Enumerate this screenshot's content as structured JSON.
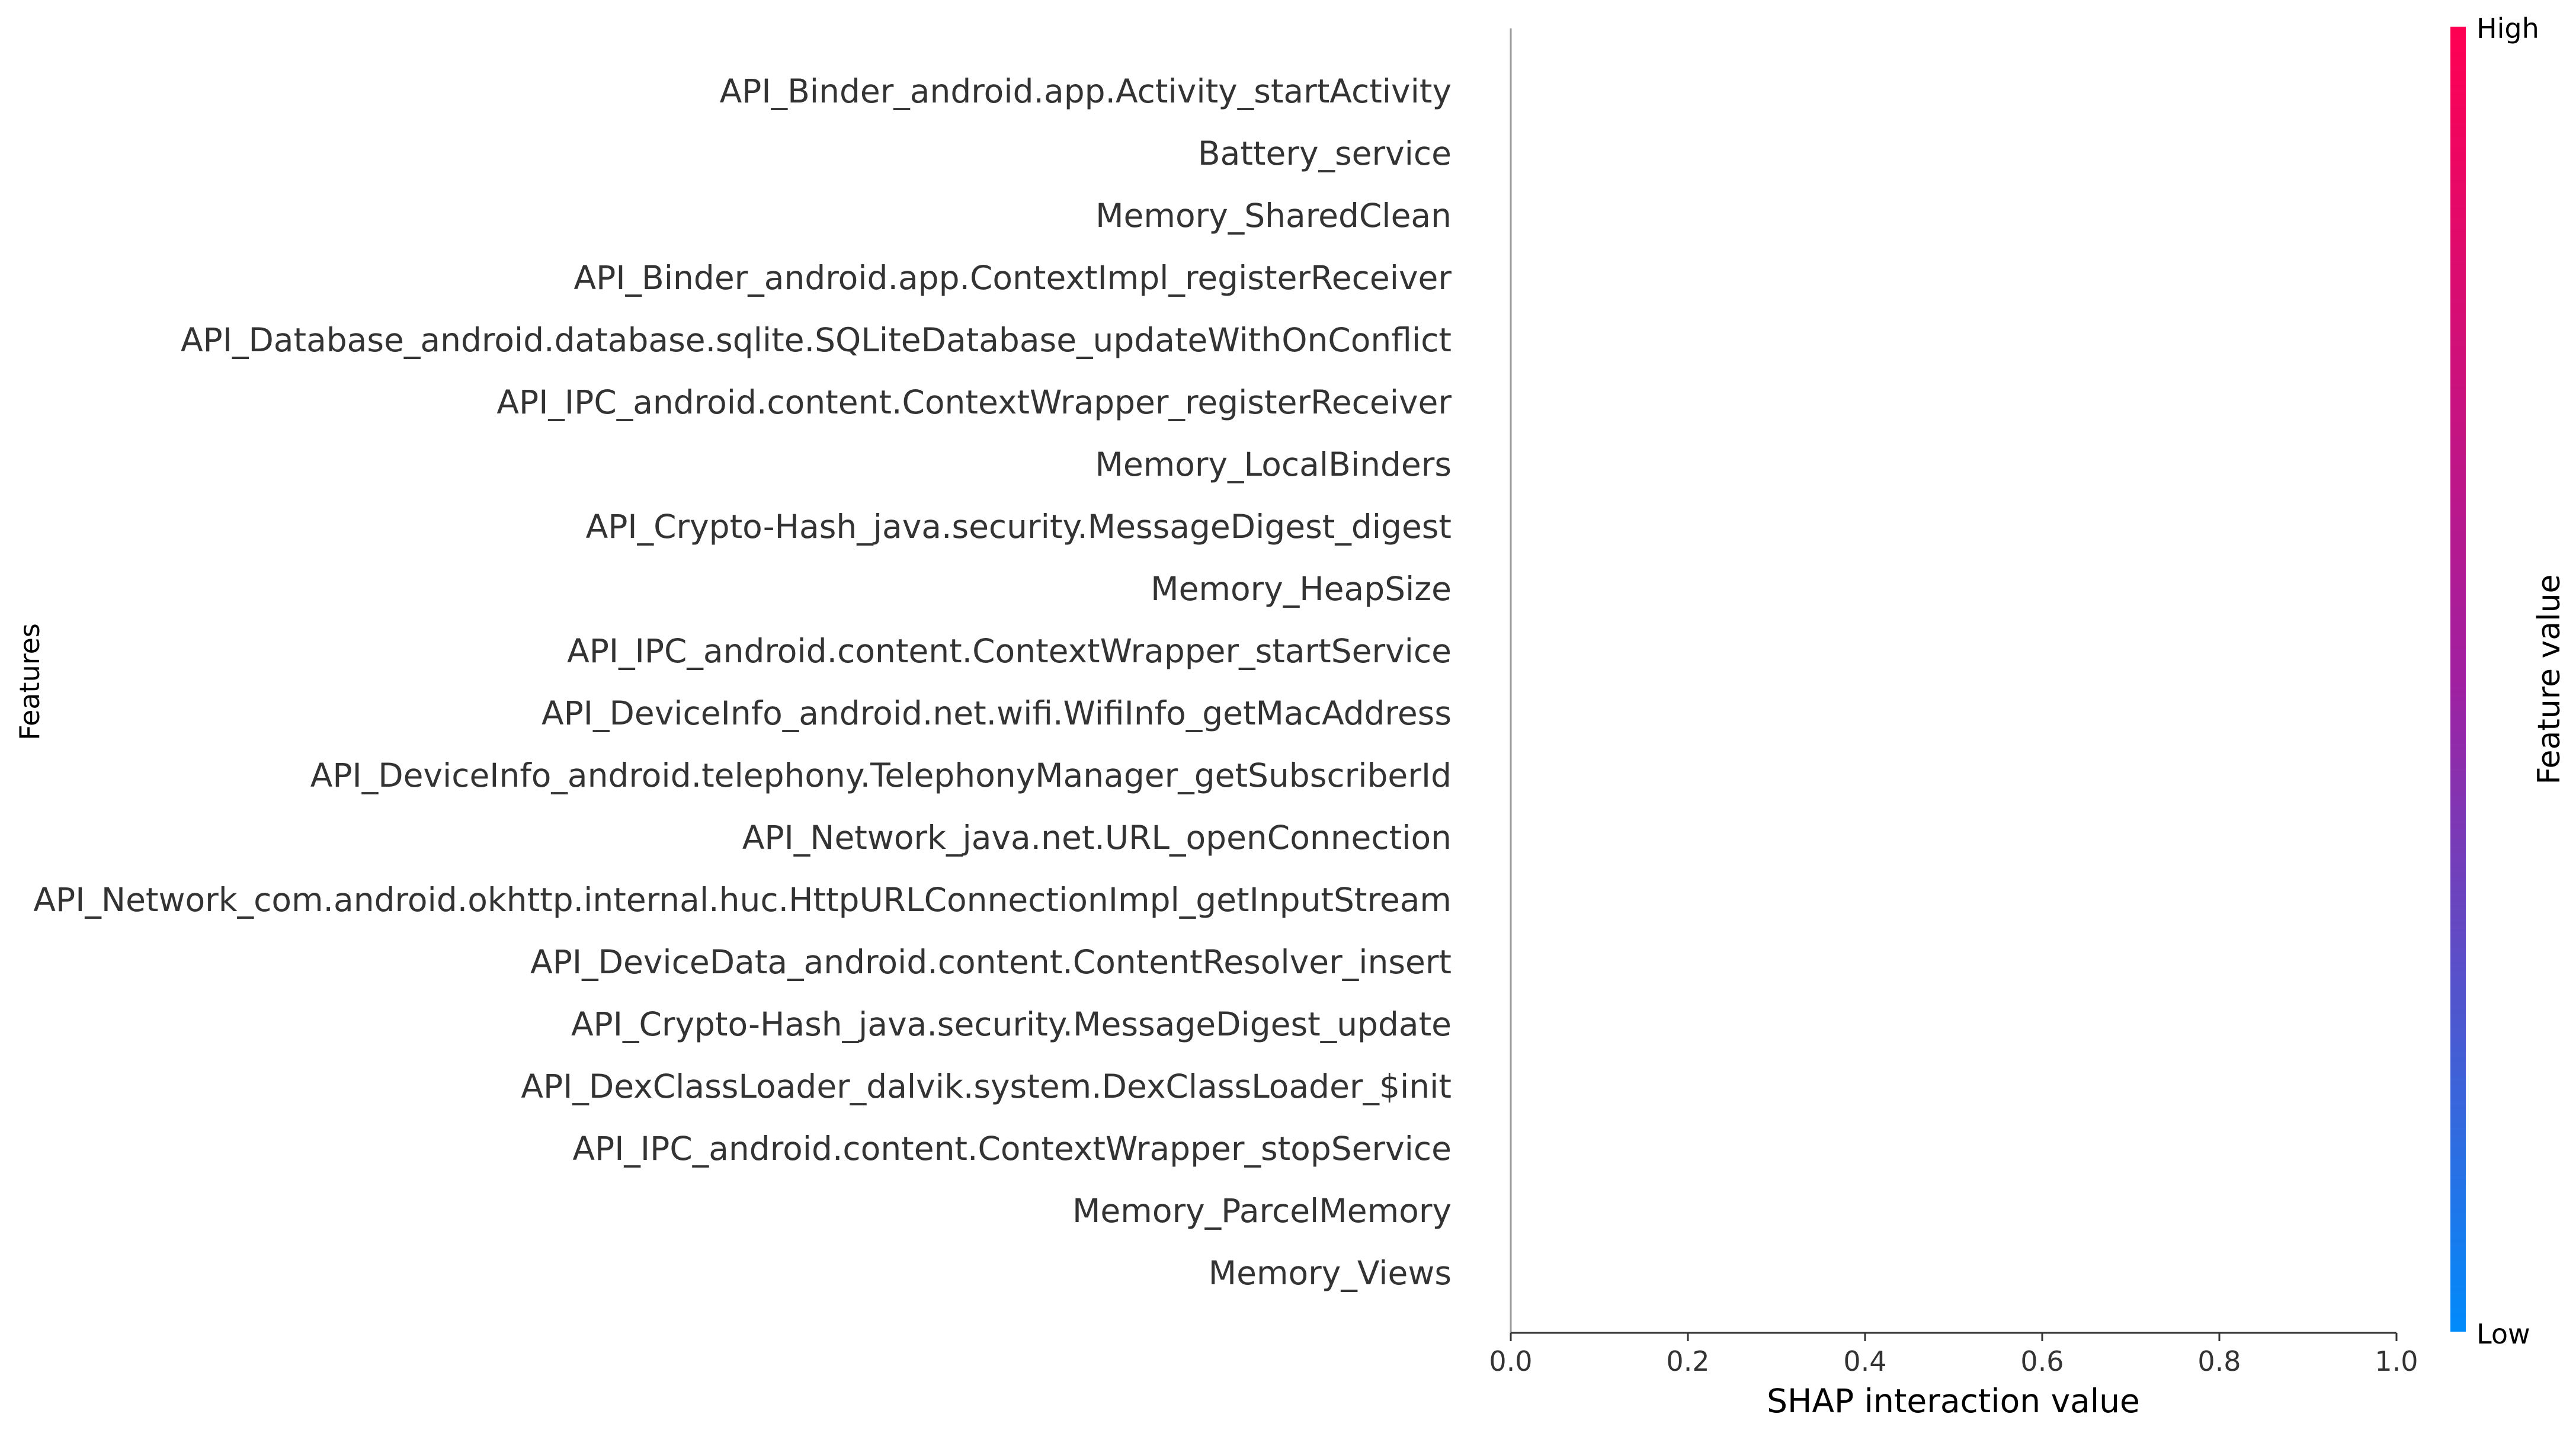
{
  "chart_data": {
    "type": "scatter",
    "title": "",
    "xlabel": "SHAP interaction value",
    "ylabel": "Features",
    "xlim": [
      0.0,
      1.0
    ],
    "xticks": [
      0.0,
      0.2,
      0.4,
      0.6,
      0.8,
      1.0
    ],
    "xtick_labels": [
      "0.0",
      "0.2",
      "0.4",
      "0.6",
      "0.8",
      "1.0"
    ],
    "features": [
      "API_Binder_android.app.Activity_startActivity",
      "Battery_service",
      "Memory_SharedClean",
      "API_Binder_android.app.ContextImpl_registerReceiver",
      "API_Database_android.database.sqlite.SQLiteDatabase_updateWithOnConflict",
      "API_IPC_android.content.ContextWrapper_registerReceiver",
      "Memory_LocalBinders",
      "API_Crypto-Hash_java.security.MessageDigest_digest",
      "Memory_HeapSize",
      "API_IPC_android.content.ContextWrapper_startService",
      "API_DeviceInfo_android.net.wifi.WifiInfo_getMacAddress",
      "API_DeviceInfo_android.telephony.TelephonyManager_getSubscriberId",
      "API_Network_java.net.URL_openConnection",
      "API_Network_com.android.okhttp.internal.huc.HttpURLConnectionImpl_getInputStream",
      "API_DeviceData_android.content.ContentResolver_insert",
      "API_Crypto-Hash_java.security.MessageDigest_update",
      "API_DexClassLoader_dalvik.system.DexClassLoader_$init",
      "API_IPC_android.content.ContextWrapper_stopService",
      "Memory_ParcelMemory",
      "Memory_Views"
    ],
    "points": [],
    "grid": false,
    "legend": "none",
    "colorbar": {
      "title": "Feature value",
      "high_label": "High",
      "low_label": "Low",
      "high_color": "#ff0052",
      "mid_color": "#a020a0",
      "low_color": "#008bfb"
    },
    "colors": {
      "axis": "#333333",
      "zero_line": "#999999"
    }
  }
}
